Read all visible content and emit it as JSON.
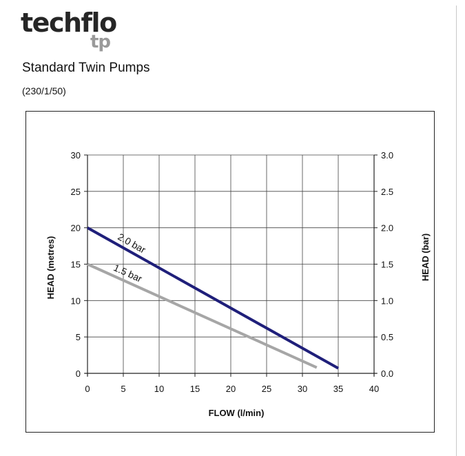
{
  "brand": {
    "name": "techflo",
    "sub": "tp"
  },
  "header": {
    "title": "Standard Twin Pumps",
    "subtitle": "(230/1/50)"
  },
  "chart_data": {
    "type": "line",
    "title": "",
    "xlabel": "FLOW (l/min)",
    "ylabel": "HEAD (metres)",
    "y2label": "HEAD (bar)",
    "xlim": [
      0,
      40
    ],
    "ylim": [
      0,
      30
    ],
    "y2lim": [
      0.0,
      3.0
    ],
    "x_ticks": [
      "0",
      "5",
      "10",
      "15",
      "20",
      "25",
      "30",
      "35",
      "40"
    ],
    "y_ticks": [
      "0",
      "5",
      "10",
      "15",
      "20",
      "25",
      "30"
    ],
    "y2_ticks": [
      "0.0",
      "0.5",
      "1.0",
      "1.5",
      "2.0",
      "2.5",
      "3.0"
    ],
    "grid": true,
    "series": [
      {
        "name": "2.0 bar",
        "color": "#1f1f7a",
        "x": [
          0,
          35
        ],
        "y": [
          20,
          0.7
        ]
      },
      {
        "name": "1.5 bar",
        "color": "#a6a6a6",
        "x": [
          0,
          32
        ],
        "y": [
          15,
          0.8
        ]
      }
    ]
  }
}
